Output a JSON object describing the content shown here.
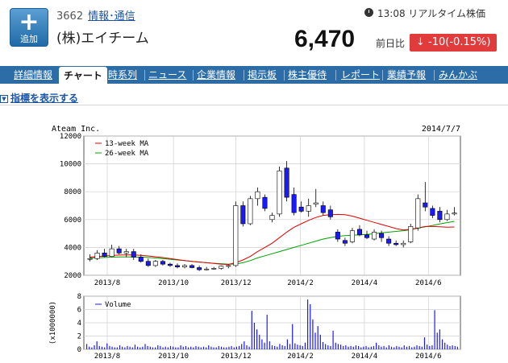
{
  "header": {
    "add_icon": "plus-icon",
    "add_label": "追加",
    "code": "3662",
    "sector": "情報･通信",
    "company": "(株)エイチーム",
    "clock_icon": "clock-icon",
    "time": "13:08 リアルタイム株価",
    "price": "6,470",
    "prev_label": "前日比",
    "change_icon": "down-arrow-icon",
    "change": "-10(-0.15%)",
    "change_color": "#e23b3b"
  },
  "nav": {
    "items": [
      "詳細情報",
      "チャート",
      "時系列",
      "ニュース",
      "企業情報",
      "掲示板",
      "株主優待",
      "レポート",
      "業績予報",
      "みんかぶ"
    ],
    "active": "チャート"
  },
  "indicator_link": "指標を表示する",
  "chart_data": [
    {
      "type": "candlestick",
      "title": "Ateam Inc.",
      "date": "2014/7/7",
      "legend": [
        "13-week MA",
        "26-week MA"
      ],
      "legend_colors": [
        "#e00000",
        "#00a000"
      ],
      "up_color": "#ffffff",
      "down_color": "#1a1aff",
      "ylim": [
        2000,
        12000
      ],
      "yticks": [
        "12000",
        "10000",
        "8000",
        "6000",
        "4000",
        "2000"
      ],
      "xticks": [
        "2013/8",
        "2013/10",
        "2013/12",
        "2014/2",
        "2014/4",
        "2014/6"
      ],
      "candles": [
        {
          "o": 3150,
          "h": 3500,
          "l": 3000,
          "c": 3200
        },
        {
          "o": 3200,
          "h": 3800,
          "l": 3100,
          "c": 3600
        },
        {
          "o": 3600,
          "h": 3900,
          "l": 3300,
          "c": 3350
        },
        {
          "o": 3350,
          "h": 4200,
          "l": 3300,
          "c": 3900
        },
        {
          "o": 3900,
          "h": 4100,
          "l": 3500,
          "c": 3600
        },
        {
          "o": 3600,
          "h": 3900,
          "l": 3300,
          "c": 3700
        },
        {
          "o": 3700,
          "h": 3900,
          "l": 3100,
          "c": 3300
        },
        {
          "o": 3300,
          "h": 3500,
          "l": 2900,
          "c": 3000
        },
        {
          "o": 3000,
          "h": 3200,
          "l": 2600,
          "c": 2700
        },
        {
          "o": 2700,
          "h": 3100,
          "l": 2600,
          "c": 3000
        },
        {
          "o": 3000,
          "h": 3100,
          "l": 2700,
          "c": 2800
        },
        {
          "o": 2800,
          "h": 2900,
          "l": 2600,
          "c": 2700
        },
        {
          "o": 2700,
          "h": 2850,
          "l": 2500,
          "c": 2600
        },
        {
          "o": 2600,
          "h": 2800,
          "l": 2500,
          "c": 2700
        },
        {
          "o": 2700,
          "h": 2800,
          "l": 2500,
          "c": 2550
        },
        {
          "o": 2550,
          "h": 2700,
          "l": 2300,
          "c": 2400
        },
        {
          "o": 2400,
          "h": 2600,
          "l": 2350,
          "c": 2450
        },
        {
          "o": 2450,
          "h": 2600,
          "l": 2400,
          "c": 2500
        },
        {
          "o": 2500,
          "h": 2700,
          "l": 2400,
          "c": 2650
        },
        {
          "o": 2650,
          "h": 2750,
          "l": 2500,
          "c": 2700
        },
        {
          "o": 2700,
          "h": 7300,
          "l": 2600,
          "c": 7000
        },
        {
          "o": 7000,
          "h": 7300,
          "l": 5500,
          "c": 5700
        },
        {
          "o": 5700,
          "h": 7700,
          "l": 5600,
          "c": 7500
        },
        {
          "o": 7500,
          "h": 8300,
          "l": 7000,
          "c": 8000
        },
        {
          "o": 7600,
          "h": 7800,
          "l": 6600,
          "c": 6800
        },
        {
          "o": 6000,
          "h": 6500,
          "l": 5800,
          "c": 6300
        },
        {
          "o": 6400,
          "h": 9800,
          "l": 6200,
          "c": 9500
        },
        {
          "o": 9700,
          "h": 10200,
          "l": 7300,
          "c": 7600
        },
        {
          "o": 7800,
          "h": 8300,
          "l": 6300,
          "c": 6500
        },
        {
          "o": 6900,
          "h": 7300,
          "l": 6500,
          "c": 6600
        },
        {
          "o": 6600,
          "h": 7500,
          "l": 6200,
          "c": 7000
        },
        {
          "o": 7100,
          "h": 8200,
          "l": 6900,
          "c": 7200
        },
        {
          "o": 7000,
          "h": 7300,
          "l": 6300,
          "c": 6500
        },
        {
          "o": 6700,
          "h": 7000,
          "l": 6000,
          "c": 6200
        },
        {
          "o": 5100,
          "h": 5300,
          "l": 4400,
          "c": 4600
        },
        {
          "o": 4500,
          "h": 4700,
          "l": 4100,
          "c": 4300
        },
        {
          "o": 4400,
          "h": 5400,
          "l": 4300,
          "c": 5200
        },
        {
          "o": 5300,
          "h": 5600,
          "l": 4800,
          "c": 4900
        },
        {
          "o": 4900,
          "h": 5200,
          "l": 4600,
          "c": 4700
        },
        {
          "o": 4600,
          "h": 5300,
          "l": 4500,
          "c": 5100
        },
        {
          "o": 5000,
          "h": 5200,
          "l": 4400,
          "c": 4700
        },
        {
          "o": 4600,
          "h": 4800,
          "l": 4100,
          "c": 4300
        },
        {
          "o": 4300,
          "h": 4500,
          "l": 4100,
          "c": 4200
        },
        {
          "o": 4200,
          "h": 4500,
          "l": 4000,
          "c": 4300
        },
        {
          "o": 4400,
          "h": 5700,
          "l": 4300,
          "c": 5500
        },
        {
          "o": 5400,
          "h": 7800,
          "l": 5200,
          "c": 7500
        },
        {
          "o": 7200,
          "h": 8700,
          "l": 6600,
          "c": 6900
        },
        {
          "o": 6800,
          "h": 7000,
          "l": 6100,
          "c": 6300
        },
        {
          "o": 6600,
          "h": 6900,
          "l": 5800,
          "c": 6000
        },
        {
          "o": 6000,
          "h": 6700,
          "l": 5900,
          "c": 6400
        },
        {
          "o": 6400,
          "h": 6900,
          "l": 6300,
          "c": 6470
        }
      ],
      "ma13": [
        3300,
        3340,
        3380,
        3420,
        3450,
        3470,
        3460,
        3430,
        3390,
        3330,
        3270,
        3200,
        3130,
        3060,
        3000,
        2950,
        2900,
        2850,
        2800,
        2780,
        2900,
        3100,
        3350,
        3700,
        4000,
        4300,
        4700,
        5100,
        5450,
        5700,
        5950,
        6150,
        6300,
        6350,
        6370,
        6350,
        6250,
        6100,
        5950,
        5800,
        5650,
        5500,
        5350,
        5250,
        5300,
        5400,
        5500,
        5500,
        5480,
        5450,
        5470
      ],
      "ma26": [
        3250,
        3260,
        3280,
        3300,
        3310,
        3320,
        3320,
        3300,
        3280,
        3240,
        3200,
        3150,
        3100,
        3050,
        3000,
        2950,
        2900,
        2860,
        2830,
        2800,
        2810,
        2900,
        3050,
        3250,
        3400,
        3550,
        3700,
        3850,
        4000,
        4150,
        4300,
        4450,
        4600,
        4700,
        4800,
        4850,
        4880,
        4900,
        4930,
        4980,
        5050,
        5100,
        5150,
        5200,
        5280,
        5380,
        5480,
        5580,
        5680,
        5780,
        5870
      ]
    },
    {
      "type": "bar",
      "legend": [
        "Volume"
      ],
      "ylabel": "(x1000000)",
      "ylim": [
        0,
        8
      ],
      "yticks": [
        "8",
        "6",
        "4",
        "2",
        "0"
      ],
      "xticks": [
        "2013/8",
        "2013/10",
        "2013/12",
        "2014/2",
        "2014/4",
        "2014/6"
      ],
      "values": [
        0.8,
        0.4,
        0.3,
        0.6,
        1.2,
        0.5,
        0.4,
        0.3,
        0.9,
        0.5,
        0.4,
        0.3,
        0.3,
        0.6,
        0.4,
        0.3,
        0.5,
        0.4,
        0.3,
        0.7,
        0.4,
        0.3,
        0.4,
        0.8,
        0.5,
        0.4,
        0.3,
        0.3,
        0.6,
        0.5,
        0.3,
        0.4,
        0.3,
        0.5,
        0.4,
        0.3,
        0.3,
        0.6,
        0.4,
        0.5,
        0.3,
        0.4,
        0.3,
        0.5,
        0.4,
        0.3,
        0.4,
        0.3,
        0.6,
        0.4,
        0.3,
        0.3,
        0.5,
        0.4,
        0.3,
        0.3,
        0.4,
        0.5,
        0.3,
        0.4,
        0.5,
        0.8,
        1.2,
        0.6,
        0.4,
        5.8,
        4.0,
        3.0,
        2.2,
        1.5,
        1.0,
        5.2,
        1.2,
        0.6,
        0.5,
        0.4,
        0.8,
        0.6,
        0.5,
        1.5,
        0.8,
        3.8,
        0.9,
        0.7,
        0.6,
        0.5,
        1.0,
        7.5,
        6.8,
        4.5,
        2.5,
        3.5,
        2.2,
        1.1,
        0.8,
        0.6,
        0.5,
        2.8,
        1.0,
        0.8,
        0.7,
        0.5,
        0.6,
        0.4,
        0.5,
        0.4,
        0.6,
        0.5,
        0.3,
        0.4,
        0.5,
        0.3,
        0.4,
        0.5,
        1.0,
        0.6,
        0.4,
        0.5,
        0.3,
        0.6,
        0.4,
        0.3,
        0.5,
        0.4,
        0.3,
        0.6,
        0.4,
        0.5,
        0.3,
        0.4,
        0.6,
        0.5,
        0.4,
        1.8,
        0.7,
        0.5,
        0.6,
        5.9,
        2.5,
        3.0,
        1.5,
        1.0,
        0.7,
        0.5,
        0.6,
        0.5,
        0.4
      ]
    }
  ]
}
